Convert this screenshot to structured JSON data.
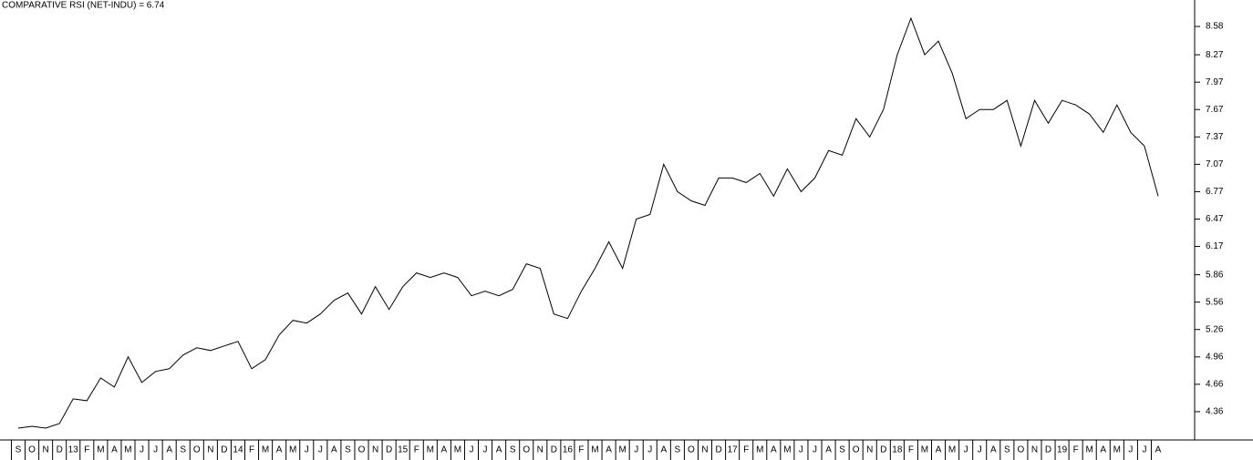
{
  "chart_data": {
    "type": "line",
    "title": "COMPARATIVE RSI (NET-INDU) = 6.74",
    "categories": [
      "S",
      "O",
      "N",
      "D",
      "13",
      "F",
      "M",
      "A",
      "M",
      "J",
      "J",
      "A",
      "S",
      "O",
      "N",
      "D",
      "14",
      "F",
      "M",
      "A",
      "M",
      "J",
      "J",
      "A",
      "S",
      "O",
      "N",
      "D",
      "15",
      "F",
      "M",
      "A",
      "M",
      "J",
      "J",
      "A",
      "S",
      "O",
      "N",
      "D",
      "16",
      "F",
      "M",
      "A",
      "M",
      "J",
      "J",
      "A",
      "S",
      "O",
      "N",
      "D",
      "17",
      "F",
      "M",
      "A",
      "M",
      "J",
      "J",
      "A",
      "S",
      "O",
      "N",
      "D",
      "18",
      "F",
      "M",
      "A",
      "M",
      "J",
      "J",
      "A",
      "S",
      "O",
      "N",
      "D",
      "19",
      "F",
      "M",
      "A",
      "M",
      "J",
      "J",
      "A"
    ],
    "series": [
      {
        "color": "#000000",
        "values": [
          4.18,
          4.2,
          4.18,
          4.23,
          4.5,
          4.48,
          4.73,
          4.63,
          4.96,
          4.68,
          4.8,
          4.83,
          4.98,
          5.06,
          5.03,
          5.08,
          5.13,
          4.83,
          4.93,
          5.2,
          5.36,
          5.33,
          5.43,
          5.58,
          5.66,
          5.43,
          5.73,
          5.48,
          5.73,
          5.88,
          5.83,
          5.88,
          5.83,
          5.63,
          5.68,
          5.63,
          5.7,
          5.98,
          5.93,
          5.43,
          5.38,
          5.68,
          5.93,
          6.22,
          5.93,
          6.47,
          6.52,
          7.07,
          6.77,
          6.67,
          6.62,
          6.92,
          6.92,
          6.87,
          6.97,
          6.72,
          7.02,
          6.77,
          6.92,
          7.22,
          7.17,
          7.57,
          7.37,
          7.67,
          8.27,
          8.67,
          8.27,
          8.42,
          8.07,
          7.57,
          7.67,
          7.67,
          7.77,
          7.27,
          7.77,
          7.52,
          7.77,
          7.72,
          7.62,
          7.42,
          7.72,
          7.42,
          7.27,
          6.72
        ]
      }
    ],
    "ylim": [
      4.05,
      8.87
    ],
    "yticks": [
      4.36,
      4.66,
      4.96,
      5.26,
      5.56,
      5.86,
      6.17,
      6.47,
      6.77,
      7.07,
      7.37,
      7.67,
      7.97,
      8.27,
      8.58
    ]
  }
}
